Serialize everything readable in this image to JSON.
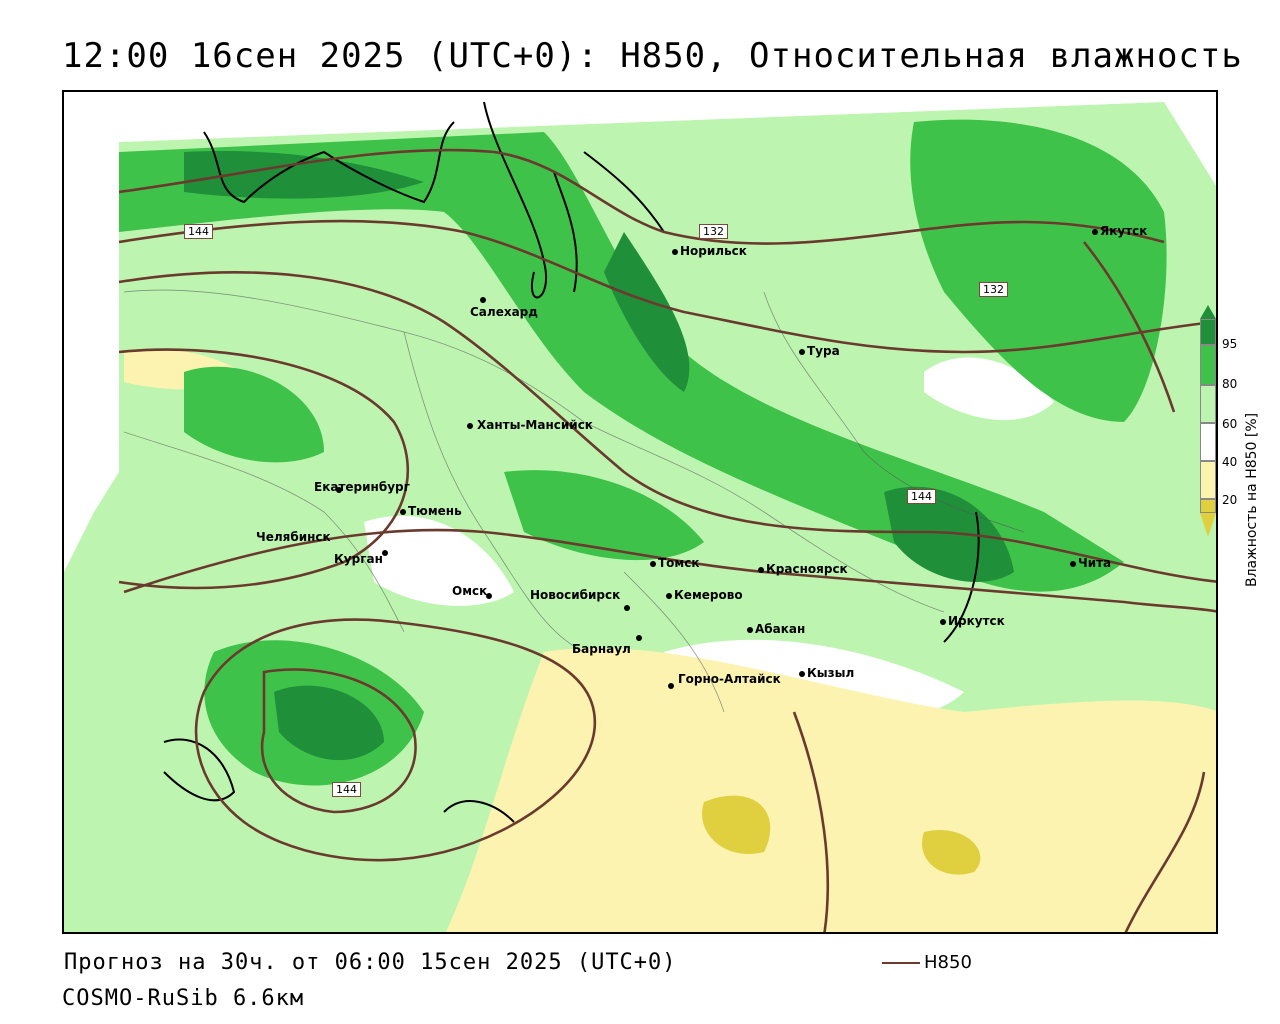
{
  "title": "12:00 16сен 2025 (UTC+0): H850, Относительная влажность",
  "footer": {
    "forecast": "Прогноз на 30ч. от 06:00 15сен 2025 (UTC+0)",
    "model": "COSMO-RuSib 6.6км"
  },
  "contour_key": {
    "label": "H850",
    "color": "#6b3a2e"
  },
  "legend": {
    "title": "Влажность на H850 [%]",
    "ticks": [
      "95",
      "80",
      "60",
      "40",
      "20"
    ],
    "colors": {
      "very_high": "#1f8f3a",
      "high": "#3fc24a",
      "moderate": "#bdf5b0",
      "neutral": "#ffffff",
      "low": "#fcf3b0",
      "very_low": "#e0d040"
    }
  },
  "contour_labels": [
    "144",
    "132",
    "132",
    "144",
    "144"
  ],
  "cities": [
    {
      "name": "Якутск"
    },
    {
      "name": "Норильск"
    },
    {
      "name": "Салехард"
    },
    {
      "name": "Тура"
    },
    {
      "name": "Ханты-Мансийск"
    },
    {
      "name": "Екатеринбург"
    },
    {
      "name": "Тюмень"
    },
    {
      "name": "Челябинск"
    },
    {
      "name": "Курган"
    },
    {
      "name": "Омск"
    },
    {
      "name": "Новосибирск"
    },
    {
      "name": "Томск"
    },
    {
      "name": "Кемерово"
    },
    {
      "name": "Красноярск"
    },
    {
      "name": "Абакан"
    },
    {
      "name": "Барнаул"
    },
    {
      "name": "Горно-Алтайск"
    },
    {
      "name": "Кызыл"
    },
    {
      "name": "Иркутск"
    },
    {
      "name": "Чита"
    }
  ]
}
